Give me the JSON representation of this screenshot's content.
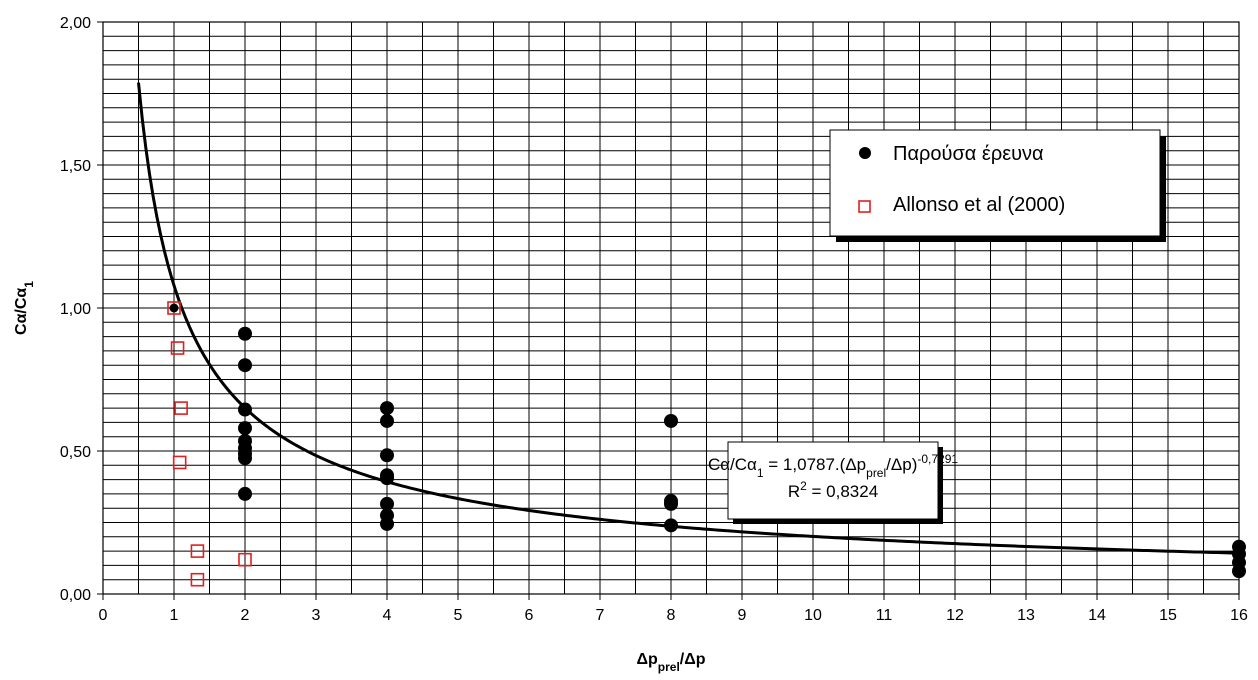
{
  "chart_data": {
    "type": "scatter",
    "title": "",
    "xlabel": {
      "main": "Δp",
      "sub": "prel",
      "tail": "/Δp"
    },
    "ylabel": {
      "main": "Cα/Cα",
      "sub": "1"
    },
    "xlim": [
      0,
      16
    ],
    "ylim": [
      0,
      2
    ],
    "xticks": [
      0,
      1,
      2,
      3,
      4,
      5,
      6,
      7,
      8,
      9,
      10,
      11,
      12,
      13,
      14,
      15,
      16
    ],
    "x_minor_step": 0.5,
    "yticks": [
      "0,00",
      "0,50",
      "1,00",
      "1,50",
      "2,00"
    ],
    "ytick_values": [
      0,
      0.5,
      1,
      1.5,
      2
    ],
    "y_minor_step": 0.05,
    "grid": true,
    "legend_position": "top-right",
    "series": [
      {
        "name": "Παρούσα έρευνα",
        "marker": "filled-circle",
        "color": "#000000",
        "points": [
          [
            1,
            1.0
          ],
          [
            2,
            0.91
          ],
          [
            2,
            0.8
          ],
          [
            2,
            0.645
          ],
          [
            2,
            0.58
          ],
          [
            2,
            0.535
          ],
          [
            2,
            0.51
          ],
          [
            2,
            0.49
          ],
          [
            2,
            0.475
          ],
          [
            2,
            0.35
          ],
          [
            4,
            0.65
          ],
          [
            4,
            0.605
          ],
          [
            4,
            0.485
          ],
          [
            4,
            0.415
          ],
          [
            4,
            0.405
          ],
          [
            4,
            0.315
          ],
          [
            4,
            0.275
          ],
          [
            4,
            0.245
          ],
          [
            8,
            0.605
          ],
          [
            8,
            0.325
          ],
          [
            8,
            0.315
          ],
          [
            8,
            0.24
          ],
          [
            16,
            0.165
          ],
          [
            16,
            0.14
          ],
          [
            16,
            0.11
          ],
          [
            16,
            0.08
          ]
        ]
      },
      {
        "name": "Allonso et al (2000)",
        "marker": "open-square",
        "color": "#e02020",
        "points": [
          [
            1,
            1.0
          ],
          [
            1.05,
            0.86
          ],
          [
            1.1,
            0.65
          ],
          [
            1.08,
            0.46
          ],
          [
            1.33,
            0.15
          ],
          [
            1.33,
            0.05
          ],
          [
            2,
            0.12
          ]
        ]
      },
      {
        "name": "",
        "type": "line",
        "color": "#000000",
        "equation": {
          "a": 1.0787,
          "b": -0.7291,
          "x_from": 0.5,
          "x_to": 16
        }
      }
    ],
    "equation_label": {
      "line1": {
        "pre": "Cα/Cα",
        "sub1": "1",
        "mid": " = 1,0787.(Δp",
        "sub2": "prel",
        "post": "/Δp)",
        "sup": "-0,7291"
      },
      "line2": {
        "pre": "R",
        "sup": "2",
        "post": " = 0,8324"
      }
    }
  }
}
